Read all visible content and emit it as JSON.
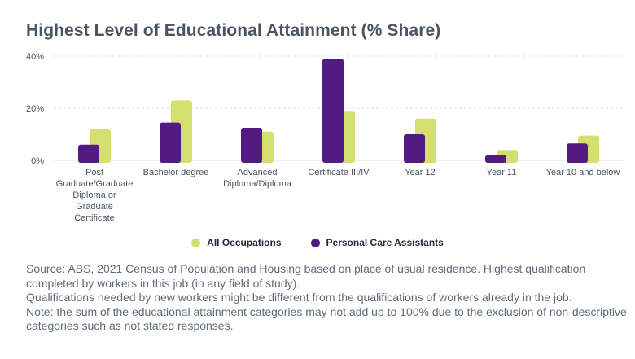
{
  "chart_data": {
    "type": "bar",
    "title": "Highest Level of Educational Attainment (% Share)",
    "xlabel": "",
    "ylabel": "",
    "ylim": [
      0,
      40
    ],
    "yticks": [
      "0%",
      "20%",
      "40%"
    ],
    "grid": true,
    "legend_position": "bottom",
    "categories": [
      [
        "Post",
        "Graduate/Graduate",
        "Diploma or",
        "Graduate",
        "Certificate"
      ],
      [
        "Bachelor degree"
      ],
      [
        "Advanced",
        "Diploma/Diploma"
      ],
      [
        "Certificate III/IV"
      ],
      [
        "Year 12"
      ],
      [
        "Year 11"
      ],
      [
        "Year 10 and below"
      ]
    ],
    "series": [
      {
        "name": "All Occupations",
        "color": "#d4df6d",
        "values": [
          12,
          23,
          11,
          19,
          16,
          4,
          9.5
        ]
      },
      {
        "name": "Personal Care Assistants",
        "color": "#521b84",
        "values": [
          6,
          14.5,
          12.5,
          39,
          10,
          2,
          6.5
        ]
      }
    ]
  },
  "source": {
    "lines": [
      "Source: ABS, 2021 Census of Population and Housing based on place of usual residence. Highest qualification completed by workers in this job (in any field of study).",
      "Qualifications needed by new workers might be different from the qualifications of workers already in the job.",
      "Note: the sum of the educational attainment categories may not add up to 100% due to the exclusion of non-descriptive categories such as not stated responses."
    ]
  }
}
